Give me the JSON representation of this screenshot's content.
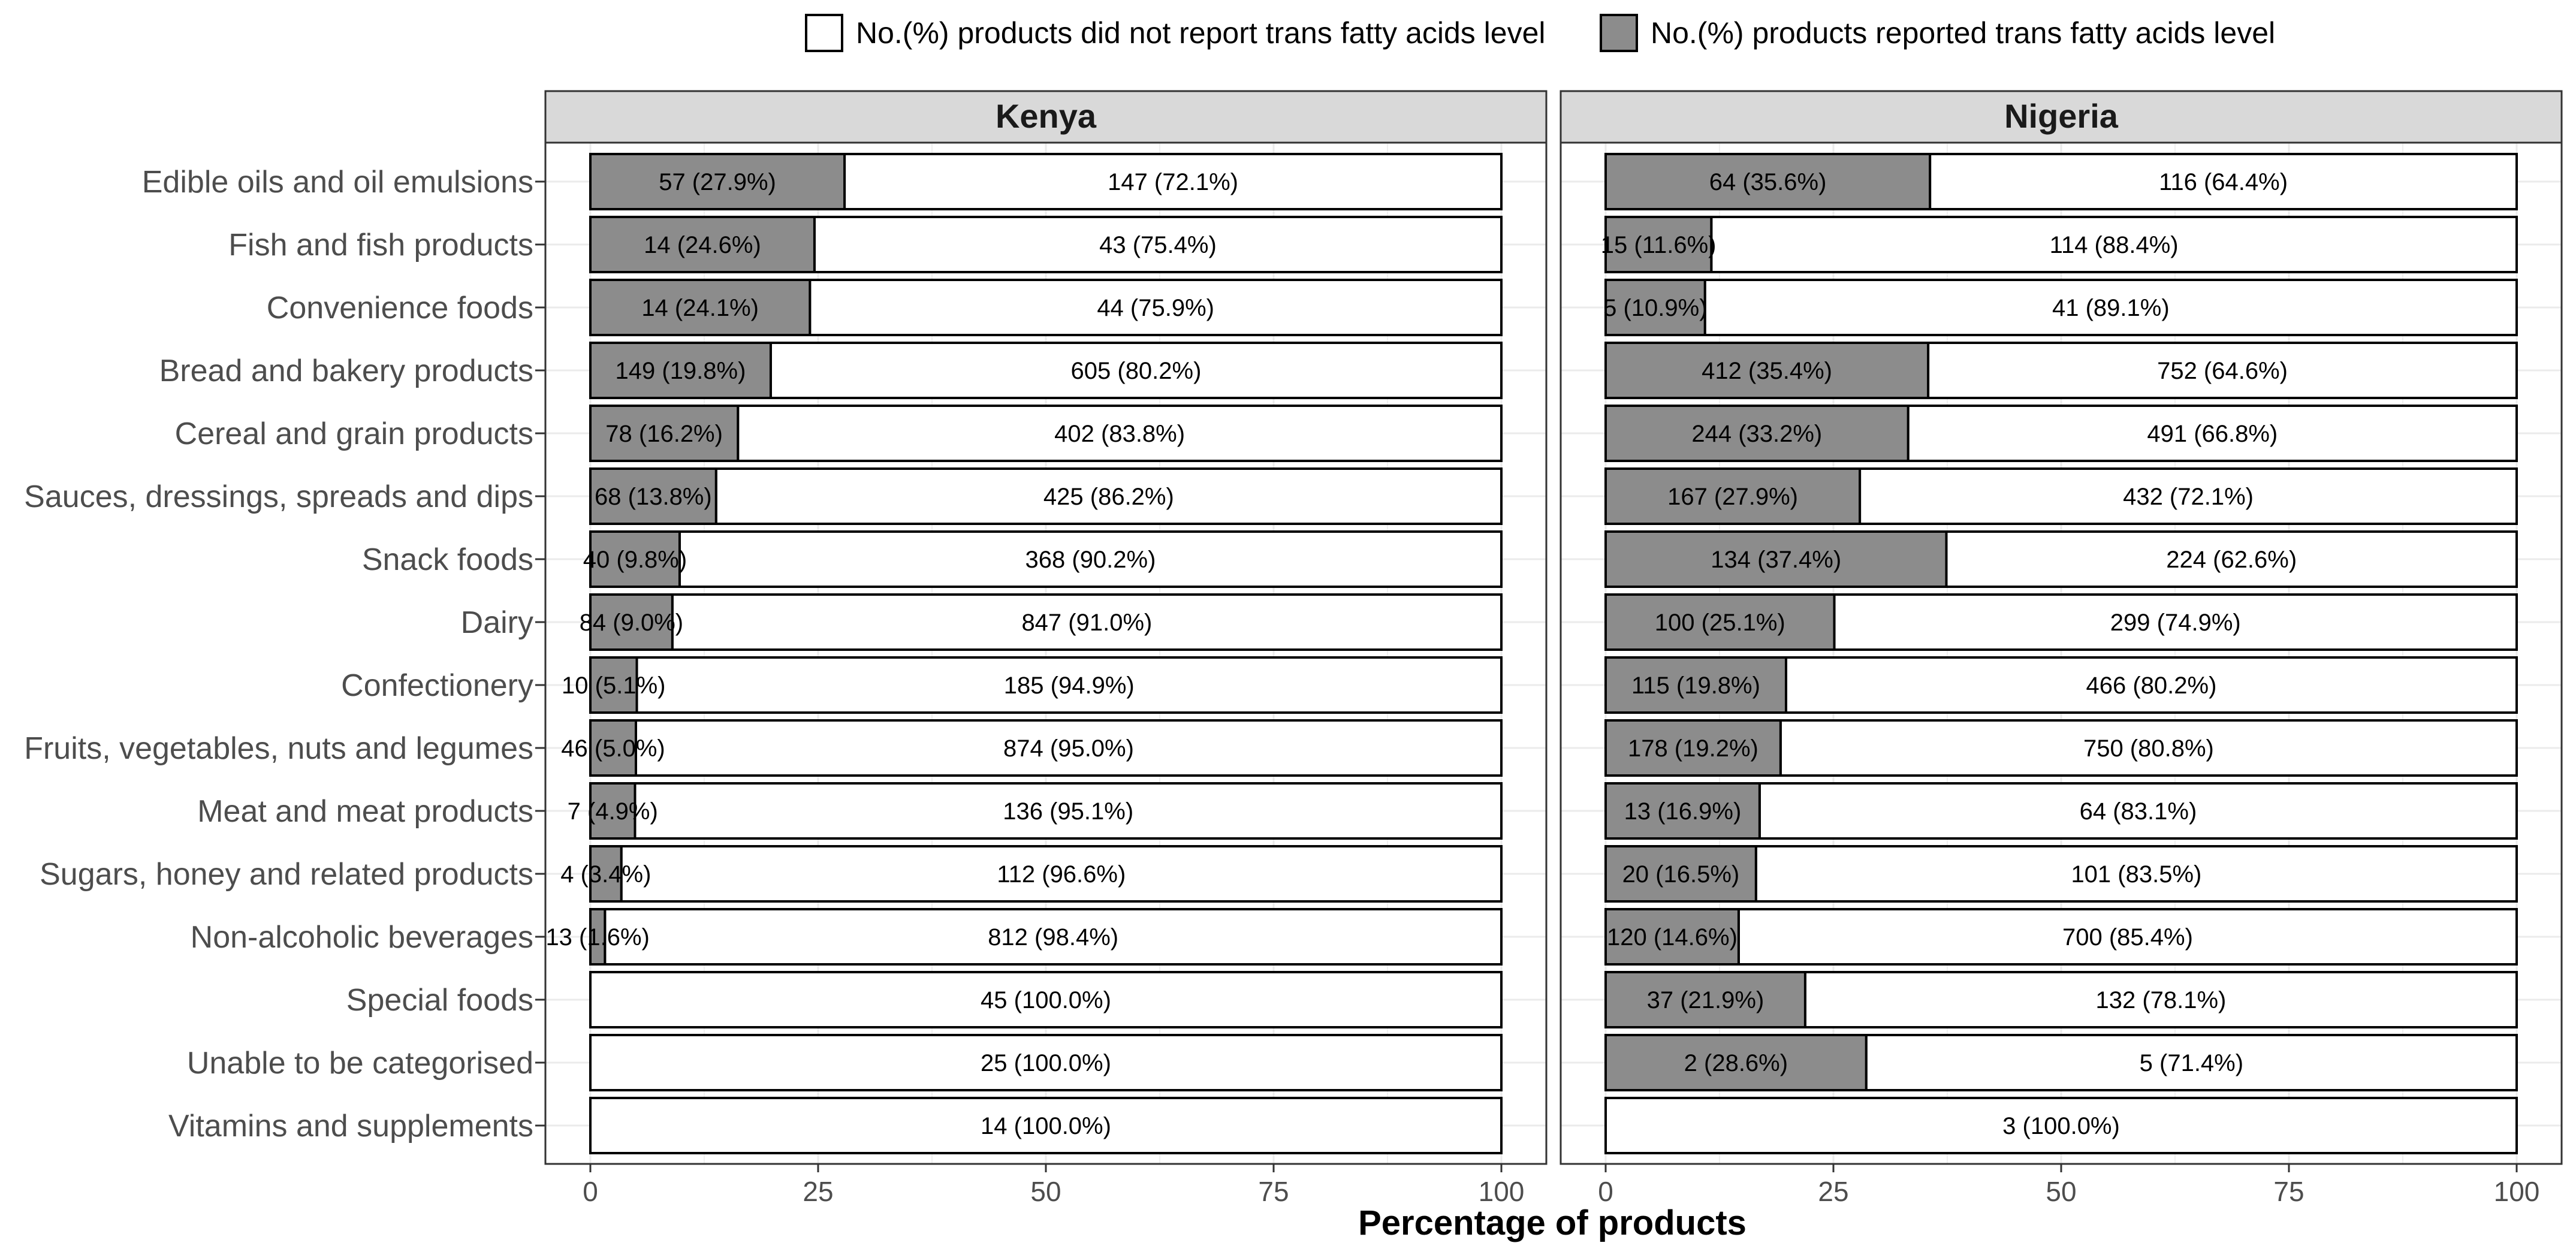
{
  "chart_data": {
    "type": "bar",
    "orientation": "horizontal",
    "stacked": true,
    "xlabel": "Percentage of products",
    "xlim": [
      0,
      100
    ],
    "xticks": [
      0,
      25,
      50,
      75,
      100
    ],
    "grid": true,
    "legend_position": "top",
    "legend": [
      {
        "key": "not_reported",
        "label": "No.(%) products did not report trans fatty acids level",
        "color": "#ffffff"
      },
      {
        "key": "reported",
        "label": "No.(%) products reported trans fatty acids level",
        "color": "#8c8c8c"
      }
    ],
    "categories": [
      "Edible oils and oil emulsions",
      "Fish and fish products",
      "Convenience foods",
      "Bread and bakery products",
      "Cereal and grain products",
      "Sauces, dressings, spreads and dips",
      "Snack foods",
      "Dairy",
      "Confectionery",
      "Fruits, vegetables, nuts and legumes",
      "Meat and meat products",
      "Sugars, honey and related products",
      "Non-alcoholic beverages",
      "Special foods",
      "Unable to be categorised",
      "Vitamins and supplements"
    ],
    "panels": [
      {
        "name": "Kenya",
        "reported_pct": [
          27.9,
          24.6,
          24.1,
          19.8,
          16.2,
          13.8,
          9.8,
          9.0,
          5.1,
          5.0,
          4.9,
          3.4,
          1.6,
          0,
          0,
          0
        ],
        "reported_labels": [
          "57 (27.9%)",
          "14 (24.6%)",
          "14 (24.1%)",
          "149 (19.8%)",
          "78 (16.2%)",
          "68 (13.8%)",
          "40 (9.8%)",
          "84 (9.0%)",
          "10 (5.1%)",
          "46 (5.0%)",
          "7 (4.9%)",
          "4 (3.4%)",
          "13 (1.6%)",
          "",
          "",
          ""
        ],
        "not_reported_labels": [
          "147 (72.1%)",
          "43 (75.4%)",
          "44 (75.9%)",
          "605 (80.2%)",
          "402 (83.8%)",
          "425 (86.2%)",
          "368 (90.2%)",
          "847 (91.0%)",
          "185 (94.9%)",
          "874 (95.0%)",
          "136 (95.1%)",
          "112 (96.6%)",
          "812 (98.4%)",
          "45 (100.0%)",
          "25 (100.0%)",
          "14 (100.0%)"
        ]
      },
      {
        "name": "Nigeria",
        "reported_pct": [
          35.6,
          11.6,
          10.9,
          35.4,
          33.2,
          27.9,
          37.4,
          25.1,
          19.8,
          19.2,
          16.9,
          16.5,
          14.6,
          21.9,
          28.6,
          0
        ],
        "reported_labels": [
          "64 (35.6%)",
          "15 (11.6%)",
          "5 (10.9%)",
          "412 (35.4%)",
          "244 (33.2%)",
          "167 (27.9%)",
          "134 (37.4%)",
          "100 (25.1%)",
          "115 (19.8%)",
          "178 (19.2%)",
          "13 (16.9%)",
          "20 (16.5%)",
          "120 (14.6%)",
          "37 (21.9%)",
          "2 (28.6%)",
          ""
        ],
        "not_reported_labels": [
          "116 (64.4%)",
          "114 (88.4%)",
          "41 (89.1%)",
          "752 (64.6%)",
          "491 (66.8%)",
          "432 (72.1%)",
          "224 (62.6%)",
          "299 (74.9%)",
          "466 (80.2%)",
          "750 (80.8%)",
          "64 (83.1%)",
          "101 (83.5%)",
          "700 (85.4%)",
          "132 (78.1%)",
          "5 (71.4%)",
          "3 (100.0%)"
        ]
      }
    ]
  }
}
